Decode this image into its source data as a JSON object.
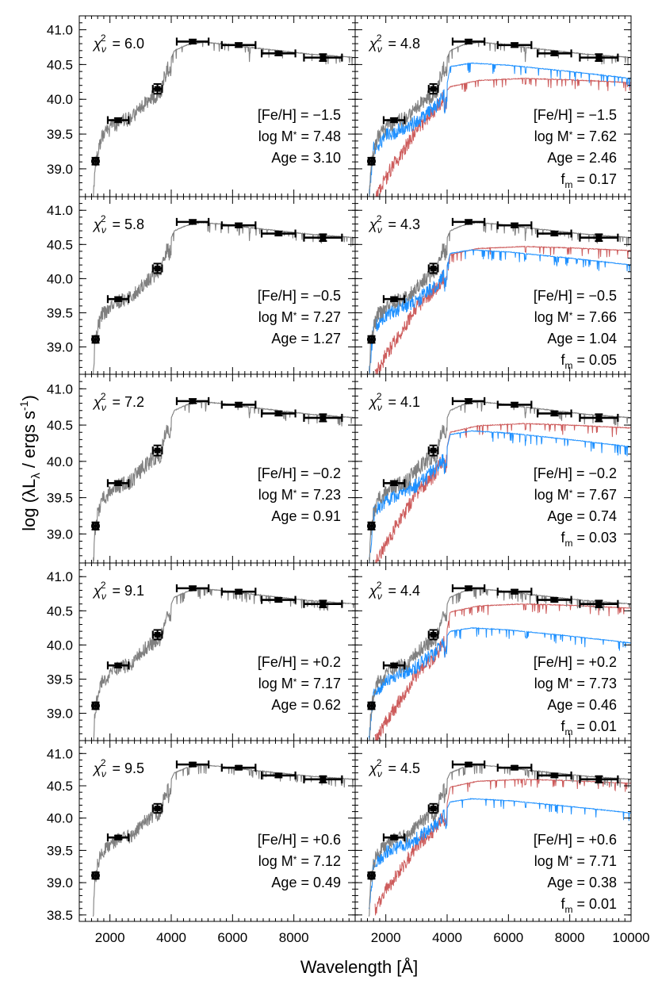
{
  "figure": {
    "ylabel": "log (λL",
    "ylabel_sub": "λ",
    "ylabel_tail": " / ergs s",
    "ylabel_sup": "-1",
    "ylabel_close": ")",
    "xlabel": "Wavelength [Å]"
  },
  "colors": {
    "total": "#808080",
    "model_a": "#1e90ff",
    "model_b": "#cd5c5c",
    "points": "#000000"
  },
  "chart_data": {
    "type": "line",
    "xlabel": "Wavelength [Å]",
    "ylabel": "log (λLλ / ergs s-1)",
    "xlim": [
      1000,
      10000
    ],
    "ylim": [
      38.6,
      41.2
    ],
    "ylim_bottom_row": [
      38.4,
      41.2
    ],
    "x_ticks": [
      2000,
      4000,
      6000,
      8000,
      10000
    ],
    "x_tick_labels_left": [
      "2000",
      "4000",
      "6000",
      "8000"
    ],
    "x_tick_labels_right": [
      "2000",
      "4000",
      "6000",
      "8000",
      "10000"
    ],
    "y_ticks": [
      39.0,
      39.5,
      40.0,
      40.5,
      41.0
    ],
    "y_tick_labels": [
      "39.0",
      "39.5",
      "40.0",
      "40.5",
      "41.0"
    ],
    "y_ticks_bottom": [
      38.5,
      39.0,
      39.5,
      40.0,
      40.5,
      41.0
    ],
    "y_tick_labels_bottom": [
      "38.5",
      "39.0",
      "39.5",
      "40.0",
      "40.5",
      "41.0"
    ],
    "chi_symbol": "χ",
    "chi_sub": "ν",
    "chi_sup": "2",
    "photometry": [
      {
        "x": 1530,
        "xerr": 60,
        "y": 39.11,
        "yerr": 0.05
      },
      {
        "x": 2270,
        "xerr": 340,
        "y": 39.7,
        "yerr": 0.03
      },
      {
        "x": 3550,
        "xerr": 150,
        "y": 40.15,
        "yerr": 0.07
      },
      {
        "x": 4700,
        "xerr": 520,
        "y": 40.83,
        "yerr": 0.03
      },
      {
        "x": 6200,
        "xerr": 550,
        "y": 40.78,
        "yerr": 0.03
      },
      {
        "x": 7500,
        "xerr": 550,
        "y": 40.66,
        "yerr": 0.03
      },
      {
        "x": 8950,
        "xerr": 620,
        "y": 40.6,
        "yerr": 0.05
      }
    ],
    "rows": [
      {
        "left": {
          "chi_value": "= 6.0",
          "lines": [
            {
              "label": "[Fe/H]",
              "value": "= −1.5"
            },
            {
              "label": "log M",
              "sub": "*",
              "value": "= 7.48"
            },
            {
              "label": "Age",
              "value": "= 3.10"
            }
          ]
        },
        "right": {
          "chi_value": "= 4.8",
          "lines": [
            {
              "label": "[Fe/H]",
              "value": "= −1.5"
            },
            {
              "label": "log M",
              "sub": "*",
              "value": "= 7.62"
            },
            {
              "label": "Age",
              "value": "= 2.46"
            },
            {
              "label": "f",
              "sub": "m",
              "value": "= 0.17"
            }
          ]
        },
        "blue_level": 40.52,
        "red_level": 40.3
      },
      {
        "left": {
          "chi_value": "= 5.8",
          "lines": [
            {
              "label": "[Fe/H]",
              "value": "= −0.5"
            },
            {
              "label": "log M",
              "sub": "*",
              "value": "= 7.27"
            },
            {
              "label": "Age",
              "value": "= 1.27"
            }
          ]
        },
        "right": {
          "chi_value": "= 4.3",
          "lines": [
            {
              "label": "[Fe/H]",
              "value": "= −0.5"
            },
            {
              "label": "log M",
              "sub": "*",
              "value": "= 7.66"
            },
            {
              "label": "Age",
              "value": "= 1.04"
            },
            {
              "label": "f",
              "sub": "m",
              "value": "= 0.05"
            }
          ]
        },
        "blue_level": 40.42,
        "red_level": 40.47
      },
      {
        "left": {
          "chi_value": "= 7.2",
          "lines": [
            {
              "label": "[Fe/H]",
              "value": "= −0.2"
            },
            {
              "label": "log M",
              "sub": "*",
              "value": "= 7.23"
            },
            {
              "label": "Age",
              "value": "= 0.91"
            }
          ]
        },
        "right": {
          "chi_value": "= 4.1",
          "lines": [
            {
              "label": "[Fe/H]",
              "value": "= −0.2"
            },
            {
              "label": "log M",
              "sub": "*",
              "value": "= 7.67"
            },
            {
              "label": "Age",
              "value": "= 0.74"
            },
            {
              "label": "f",
              "sub": "m",
              "value": "= 0.03"
            }
          ]
        },
        "blue_level": 40.42,
        "red_level": 40.52
      },
      {
        "left": {
          "chi_value": "= 9.1",
          "lines": [
            {
              "label": "[Fe/H]",
              "value": "= +0.2"
            },
            {
              "label": "log M",
              "sub": "*",
              "value": "= 7.17"
            },
            {
              "label": "Age",
              "value": "= 0.62"
            }
          ]
        },
        "right": {
          "chi_value": "= 4.4",
          "lines": [
            {
              "label": "[Fe/H]",
              "value": "= +0.2"
            },
            {
              "label": "log M",
              "sub": "*",
              "value": "= 7.73"
            },
            {
              "label": "Age",
              "value": "= 0.46"
            },
            {
              "label": "f",
              "sub": "m",
              "value": "= 0.01"
            }
          ]
        },
        "blue_level": 40.25,
        "red_level": 40.6
      },
      {
        "left": {
          "chi_value": "= 9.5",
          "lines": [
            {
              "label": "[Fe/H]",
              "value": "= +0.6"
            },
            {
              "label": "log M",
              "sub": "*",
              "value": "= 7.12"
            },
            {
              "label": "Age",
              "value": "= 0.49"
            }
          ]
        },
        "right": {
          "chi_value": "= 4.5",
          "lines": [
            {
              "label": "[Fe/H]",
              "value": "= +0.6"
            },
            {
              "label": "log M",
              "sub": "*",
              "value": "= 7.71"
            },
            {
              "label": "Age",
              "value": "= 0.38"
            },
            {
              "label": "f",
              "sub": "m",
              "value": "= 0.01"
            }
          ]
        },
        "blue_level": 40.3,
        "red_level": 40.6
      }
    ]
  }
}
